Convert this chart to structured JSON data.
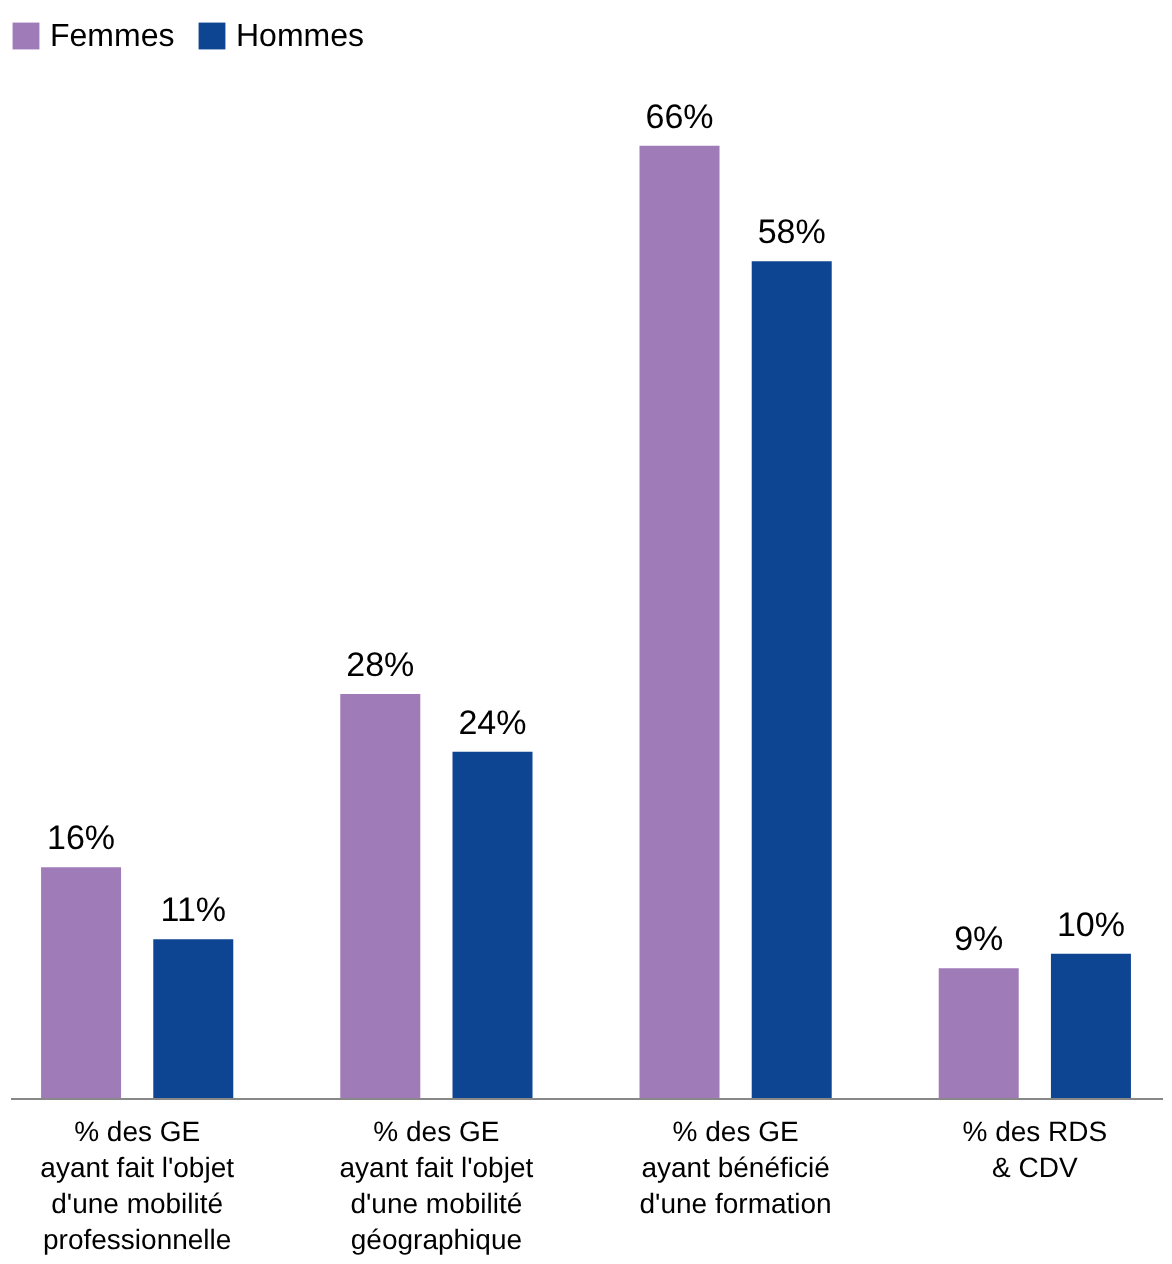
{
  "chart_data": {
    "type": "bar",
    "categories": [
      "% des GE\nayant fait l'objet\nd'une mobilité\nprofessionnelle",
      "% des GE\nayant fait l'objet\nd'une mobilité\ngéographique",
      "% des GE\nayant bénéficié\nd'une formation",
      "% des RDS\n& CDV"
    ],
    "series": [
      {
        "name": "Femmes",
        "color": "#9f7bb7",
        "values": [
          16,
          28,
          66,
          9
        ],
        "value_labels": [
          "16%",
          "28%",
          "66%",
          "9%"
        ]
      },
      {
        "name": "Hommes",
        "color": "#0e4593",
        "values": [
          11,
          24,
          58,
          10
        ],
        "value_labels": [
          "11%",
          "24%",
          "58%",
          "10%"
        ]
      }
    ],
    "legend": "top",
    "grid": false
  }
}
